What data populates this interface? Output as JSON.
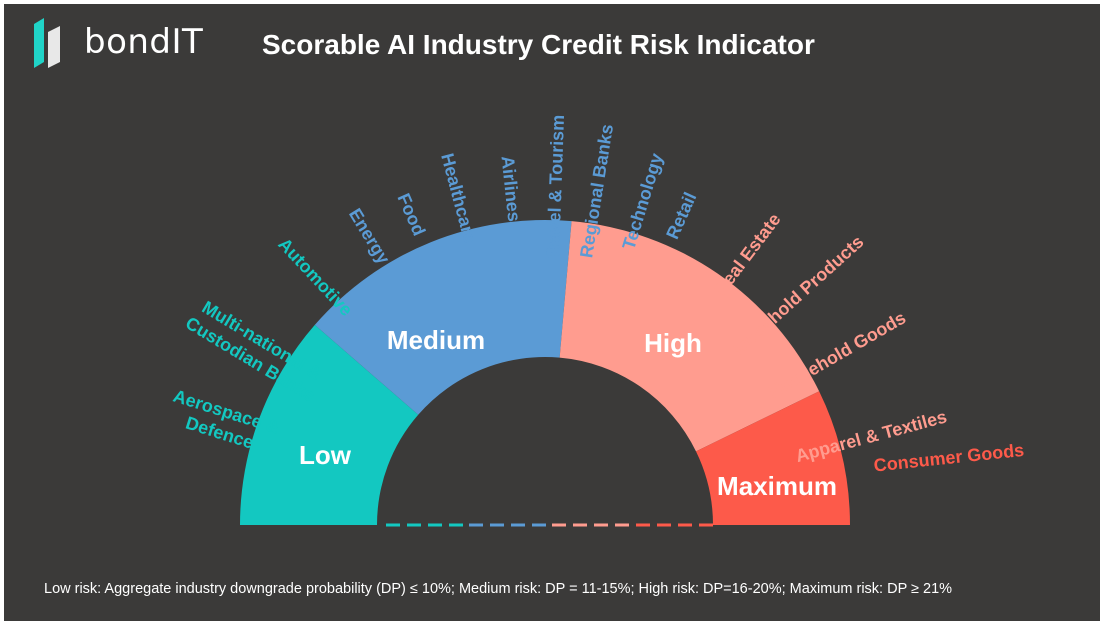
{
  "brand": {
    "name": "bondIT"
  },
  "title": "Scorable AI Industry Credit Risk Indicator",
  "colors": {
    "background": "#3b3a39",
    "low": "#13c8c1",
    "medium": "#5b9bd5",
    "high": "#ff9c8f",
    "maximum": "#fd5a4a",
    "logo": "#20d4c8"
  },
  "segments": [
    {
      "id": "low",
      "label": "Low"
    },
    {
      "id": "medium",
      "label": "Medium"
    },
    {
      "id": "high",
      "label": "High"
    },
    {
      "id": "maximum",
      "label": "Maximum"
    }
  ],
  "industries": [
    {
      "id": "aerospace-defence",
      "lines": [
        "Aerospace &",
        "Defence"
      ],
      "segment": "low"
    },
    {
      "id": "multinational-custodian-banks",
      "lines": [
        "Multi-national &",
        "Custodian Banks"
      ],
      "segment": "low"
    },
    {
      "id": "automotive",
      "lines": [
        "Automotive"
      ],
      "segment": "low"
    },
    {
      "id": "energy",
      "lines": [
        "Energy"
      ],
      "segment": "medium"
    },
    {
      "id": "food",
      "lines": [
        "Food"
      ],
      "segment": "medium"
    },
    {
      "id": "healthcare",
      "lines": [
        "Healthcare"
      ],
      "segment": "medium"
    },
    {
      "id": "airlines",
      "lines": [
        "Airlines"
      ],
      "segment": "medium"
    },
    {
      "id": "travel-tourism",
      "lines": [
        "Travel & Tourism"
      ],
      "segment": "medium"
    },
    {
      "id": "regional-banks",
      "lines": [
        "Regional Banks"
      ],
      "segment": "medium"
    },
    {
      "id": "technology",
      "lines": [
        "Technology"
      ],
      "segment": "medium"
    },
    {
      "id": "retail",
      "lines": [
        "Retail"
      ],
      "segment": "medium"
    },
    {
      "id": "real-estate",
      "lines": [
        "Real Estate"
      ],
      "segment": "high"
    },
    {
      "id": "household-products",
      "lines": [
        "Household Products"
      ],
      "segment": "high"
    },
    {
      "id": "household-goods",
      "lines": [
        "Household Goods"
      ],
      "segment": "high"
    },
    {
      "id": "apparel-textiles",
      "lines": [
        "Apparel & Textiles"
      ],
      "segment": "high"
    },
    {
      "id": "consumer-goods",
      "lines": [
        "Consumer Goods"
      ],
      "segment": "maximum"
    }
  ],
  "footnote": "Low risk: Aggregate industry downgrade probability (DP) ≤ 10%;  Medium risk: DP = 11-15%; High risk: DP=16-20%; Maximum risk: DP ≥ 21%"
}
